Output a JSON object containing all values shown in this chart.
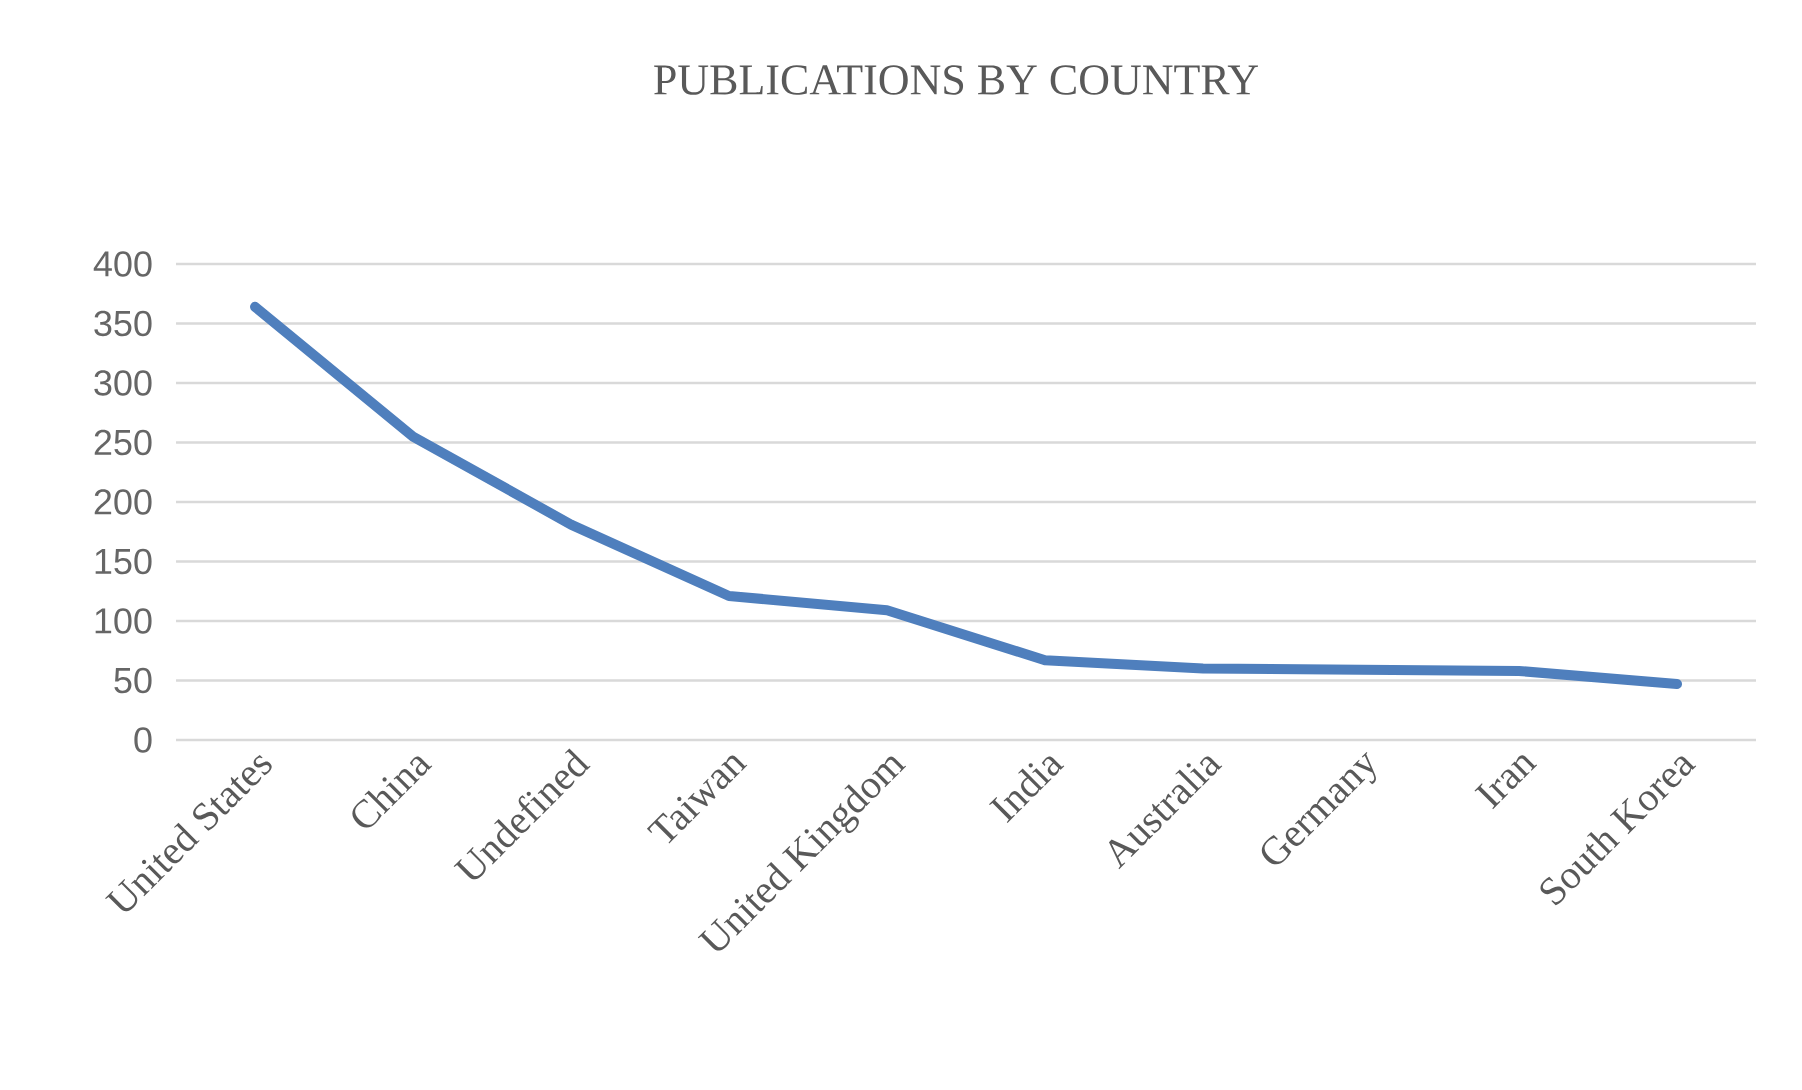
{
  "chart_data": {
    "type": "line",
    "title": "PUBLICATIONS  BY COUNTRY",
    "categories": [
      "United States",
      "China",
      "Undefined",
      "Taiwan",
      "United Kingdom",
      "India",
      "Australia",
      "Germany",
      "Iran",
      "South Korea"
    ],
    "series": [
      {
        "color": "#4f7fbd",
        "values": [
          364,
          255,
          181,
          121,
          109,
          67,
          60,
          59,
          58,
          47
        ]
      }
    ],
    "ylim": [
      0,
      400
    ],
    "yticks": [
      0,
      50,
      100,
      150,
      200,
      250,
      300,
      350,
      400
    ],
    "grid": "y",
    "marker": "none",
    "line_style": "solid"
  }
}
